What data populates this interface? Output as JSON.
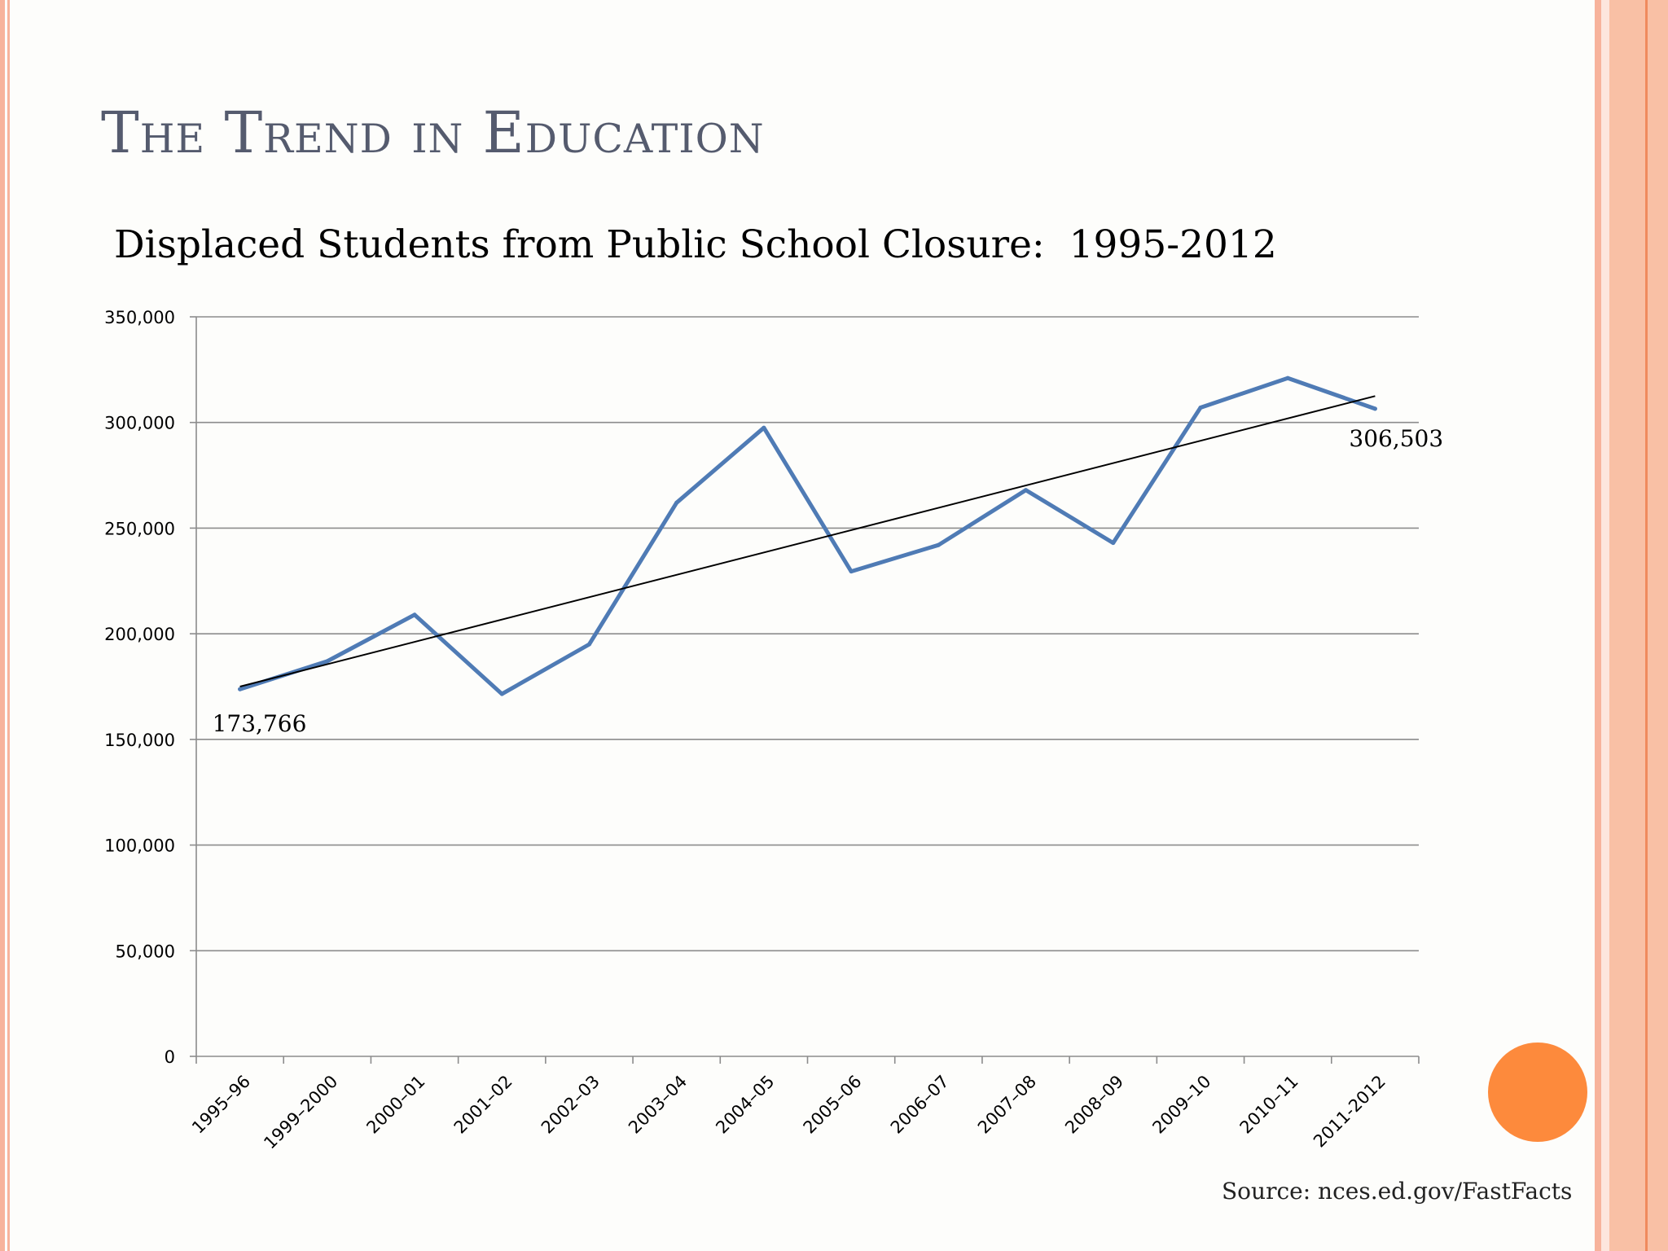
{
  "slide": {
    "title": "The Trend in Education",
    "source": "Source: nces.ed.gov/FastFacts",
    "accent_color": "#fd8a3c",
    "border_color": "#f7b39c"
  },
  "chart_data": {
    "type": "line",
    "title": "Displaced Students from Public School Closure:  1995-2012",
    "xlabel": "",
    "ylabel": "",
    "categories": [
      "1995–96",
      "1999–2000",
      "2000–01",
      "2001–02",
      "2002–03",
      "2003–04",
      "2004–05",
      "2005–06",
      "2006–07",
      "2007–08",
      "2008–09",
      "2009–10",
      "2010–11",
      "2011-2012"
    ],
    "series": [
      {
        "values": [
          173766,
          187000,
          209000,
          171500,
          195000,
          262000,
          297500,
          229500,
          242000,
          268000,
          243000,
          307000,
          321000,
          306503
        ],
        "color": "#4f7bb5"
      }
    ],
    "trendline": {
      "start": 175000,
      "end": 312500,
      "color": "#000000"
    },
    "ylim": [
      0,
      350000
    ],
    "yticks": [
      0,
      50000,
      100000,
      150000,
      200000,
      250000,
      300000,
      350000
    ],
    "ytick_labels": [
      "0",
      "50,000",
      "100,000",
      "150,000",
      "200,000",
      "250,000",
      "300,000",
      "350,000"
    ],
    "annotations": [
      "173,766",
      "306,503"
    ],
    "grid": true,
    "legend": "none"
  }
}
